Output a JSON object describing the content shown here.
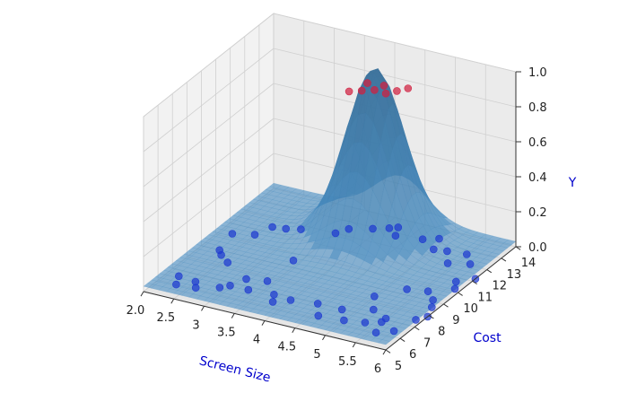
{
  "chart_data": {
    "type": "scatter",
    "subtype": "3d-surface-with-scatter",
    "xlabel": "Screen Size",
    "ylabel": "Cost",
    "zlabel": "Y",
    "label_color": "#0000cc",
    "xlim": [
      2.0,
      6.0
    ],
    "ylim": [
      5,
      14
    ],
    "zlim": [
      0.0,
      1.0
    ],
    "x_ticks": [
      "2.0",
      "2.5",
      "3",
      "3.5",
      "4",
      "4.5",
      "5",
      "5.5",
      "6"
    ],
    "y_ticks": [
      "5",
      "6",
      "7",
      "8",
      "9",
      "10",
      "11",
      "12",
      "13",
      "14"
    ],
    "z_ticks": [
      "0.0",
      "0.2",
      "0.4",
      "0.6",
      "0.8",
      "1.0"
    ],
    "grid": true,
    "surface": {
      "color": "#4a8fc4",
      "peak_center": [
        4.1,
        12.2
      ],
      "peak_height": 0.95
    },
    "series": [
      {
        "color": "#1f3ad0",
        "class_value": 0,
        "points": [
          [
            2.2,
            6.6
          ],
          [
            2.3,
            6.0
          ],
          [
            2.5,
            6.5
          ],
          [
            2.6,
            6.1
          ],
          [
            2.9,
            6.5
          ],
          [
            2.3,
            9.0
          ],
          [
            2.4,
            8.7
          ],
          [
            2.2,
            10.3
          ],
          [
            2.5,
            10.6
          ],
          [
            2.6,
            11.4
          ],
          [
            2.8,
            11.5
          ],
          [
            3.0,
            11.7
          ],
          [
            2.6,
            8.3
          ],
          [
            3.0,
            6.8
          ],
          [
            3.1,
            7.5
          ],
          [
            3.3,
            6.8
          ],
          [
            3.4,
            7.7
          ],
          [
            3.7,
            6.9
          ],
          [
            3.8,
            6.4
          ],
          [
            3.4,
            9.5
          ],
          [
            3.5,
            12.0
          ],
          [
            3.6,
            12.5
          ],
          [
            3.9,
            12.9
          ],
          [
            4.1,
            13.2
          ],
          [
            4.2,
            13.4
          ],
          [
            4.3,
            12.8
          ],
          [
            4.6,
            6.2
          ],
          [
            4.8,
            7.0
          ],
          [
            5.0,
            6.3
          ],
          [
            5.2,
            7.5
          ],
          [
            5.3,
            6.5
          ],
          [
            5.6,
            6.0
          ],
          [
            5.8,
            6.4
          ],
          [
            5.9,
            7.5
          ],
          [
            5.5,
            7.1
          ],
          [
            5.0,
            8.4
          ],
          [
            4.4,
            7.0
          ],
          [
            4.7,
            13.0
          ],
          [
            4.9,
            13.3
          ],
          [
            5.0,
            12.5
          ],
          [
            5.2,
            12.6
          ],
          [
            5.4,
            11.8
          ],
          [
            5.5,
            12.7
          ],
          [
            5.7,
            12.1
          ],
          [
            5.8,
            10.7
          ],
          [
            5.9,
            10.2
          ],
          [
            6.0,
            11.2
          ],
          [
            5.6,
            9.6
          ],
          [
            5.3,
            9.4
          ],
          [
            5.8,
            9.1
          ],
          [
            5.9,
            8.6
          ],
          [
            6.0,
            7.9
          ],
          [
            5.5,
            6.8
          ],
          [
            4.0,
            6.8
          ]
        ]
      },
      {
        "color": "#d02040",
        "class_value": 1,
        "points": [
          [
            4.2,
            10.0
          ],
          [
            4.35,
            10.25
          ],
          [
            4.5,
            10.5
          ],
          [
            4.3,
            10.85
          ],
          [
            4.55,
            10.95
          ],
          [
            4.7,
            10.45
          ],
          [
            4.8,
            10.8
          ],
          [
            4.9,
            11.15
          ]
        ]
      }
    ]
  }
}
